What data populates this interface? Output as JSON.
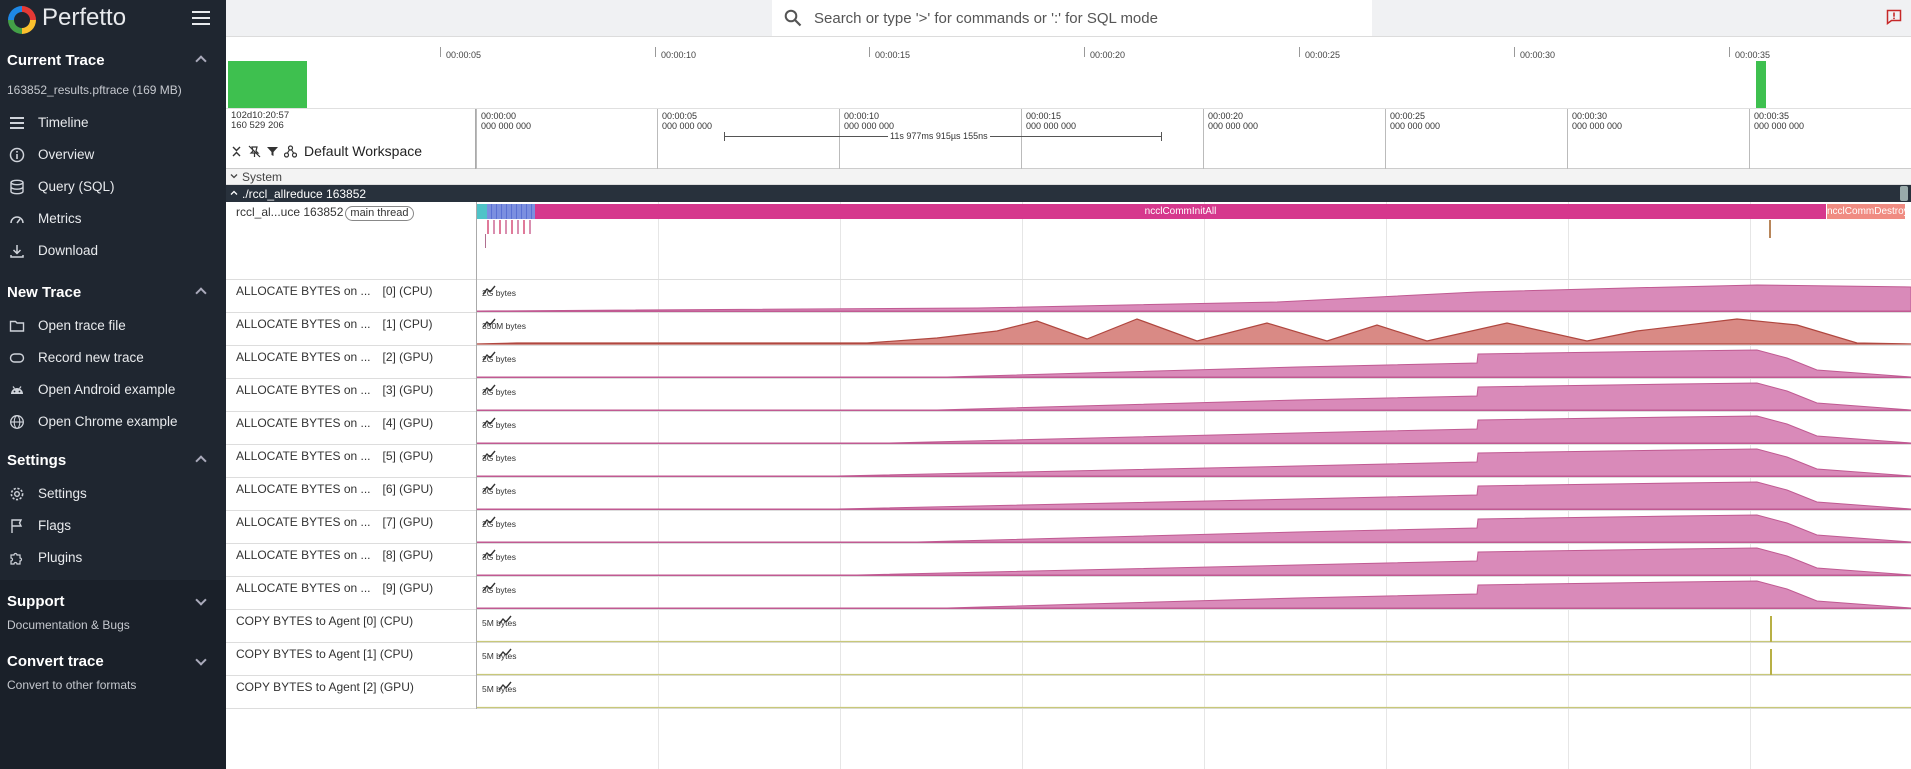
{
  "app": {
    "name": "Perfetto"
  },
  "sidebar": {
    "sections": [
      {
        "title": "Current Trace",
        "subtitle": "163852_results.pftrace (169 MB)",
        "items": [
          {
            "label": "Timeline",
            "icon": "timeline-icon"
          },
          {
            "label": "Overview",
            "icon": "info-icon"
          },
          {
            "label": "Query (SQL)",
            "icon": "database-icon"
          },
          {
            "label": "Metrics",
            "icon": "gauge-icon"
          },
          {
            "label": "Download",
            "icon": "download-icon"
          }
        ]
      },
      {
        "title": "New Trace",
        "items": [
          {
            "label": "Open trace file",
            "icon": "folder-icon"
          },
          {
            "label": "Record new trace",
            "icon": "record-icon"
          },
          {
            "label": "Open Android example",
            "icon": "android-icon"
          },
          {
            "label": "Open Chrome example",
            "icon": "globe-icon"
          }
        ]
      },
      {
        "title": "Settings",
        "items": [
          {
            "label": "Settings",
            "icon": "gear-icon"
          },
          {
            "label": "Flags",
            "icon": "flag-icon"
          },
          {
            "label": "Plugins",
            "icon": "puzzle-icon"
          }
        ]
      },
      {
        "title": "Support",
        "subtitle": "Documentation & Bugs"
      },
      {
        "title": "Convert trace",
        "subtitle": "Convert to other formats"
      }
    ]
  },
  "search": {
    "placeholder": "Search or type '>' for commands or ':' for SQL mode"
  },
  "overview": {
    "ticks": [
      "00:00:05",
      "00:00:10",
      "00:00:15",
      "00:00:20",
      "00:00:25",
      "00:00:30",
      "00:00:35"
    ]
  },
  "axis": {
    "trace_start": "102d10:20:57\n160 529 206",
    "workspace": "Default Workspace",
    "ticks": [
      "00:00:00\n000 000 000",
      "00:00:05\n000 000 000",
      "00:00:10\n000 000 000",
      "00:00:15\n000 000 000",
      "00:00:20\n000 000 000",
      "00:00:25\n000 000 000",
      "00:00:30\n000 000 000",
      "00:00:35\n000 000 000"
    ],
    "ruler_label": "11s 977ms 915µs 155ns"
  },
  "tracks": {
    "system_label": "System",
    "process_label": "./rccl_allreduce 163852",
    "thread": {
      "name": "rccl_al...uce 163852",
      "chip": "main thread",
      "slices": [
        {
          "name": "ncclCommInitAll",
          "color": "#d6388d"
        },
        {
          "name": "ncclCommDestroy",
          "color": "#f08c82"
        }
      ]
    },
    "counters": [
      {
        "name": "ALLOCATE BYTES on ...",
        "suffix": "[0] (CPU)",
        "scale": "2G bytes"
      },
      {
        "name": "ALLOCATE BYTES on ...",
        "suffix": "[1] (CPU)",
        "scale": "350M bytes"
      },
      {
        "name": "ALLOCATE BYTES on ...",
        "suffix": "[2] (GPU)",
        "scale": "2G bytes"
      },
      {
        "name": "ALLOCATE BYTES on ...",
        "suffix": "[3] (GPU)",
        "scale": "3G bytes"
      },
      {
        "name": "ALLOCATE BYTES on ...",
        "suffix": "[4] (GPU)",
        "scale": "3G bytes"
      },
      {
        "name": "ALLOCATE BYTES on ...",
        "suffix": "[5] (GPU)",
        "scale": "3G bytes"
      },
      {
        "name": "ALLOCATE BYTES on ...",
        "suffix": "[6] (GPU)",
        "scale": "3G bytes"
      },
      {
        "name": "ALLOCATE BYTES on ...",
        "suffix": "[7] (GPU)",
        "scale": "2G bytes"
      },
      {
        "name": "ALLOCATE BYTES on ...",
        "suffix": "[8] (GPU)",
        "scale": "3G bytes"
      },
      {
        "name": "ALLOCATE BYTES on ...",
        "suffix": "[9] (GPU)",
        "scale": "3G bytes"
      },
      {
        "name": "COPY BYTES to Agent [0] (CPU)",
        "suffix": "",
        "scale": "5M bytes"
      },
      {
        "name": "COPY BYTES to Agent [1] (CPU)",
        "suffix": "",
        "scale": "5M bytes"
      },
      {
        "name": "COPY BYTES to Agent [2] (GPU)",
        "suffix": "",
        "scale": "5M bytes"
      }
    ]
  },
  "colors": {
    "sidebar_bg": "#1f2630",
    "alloc_fill": "#d98ab9",
    "alloc_line": "#c05a92",
    "cpu1_fill": "#d98a85",
    "cpu1_line": "#b0473f",
    "copy_line": "#c8c87a",
    "overview_bar": "#3ec04f"
  }
}
